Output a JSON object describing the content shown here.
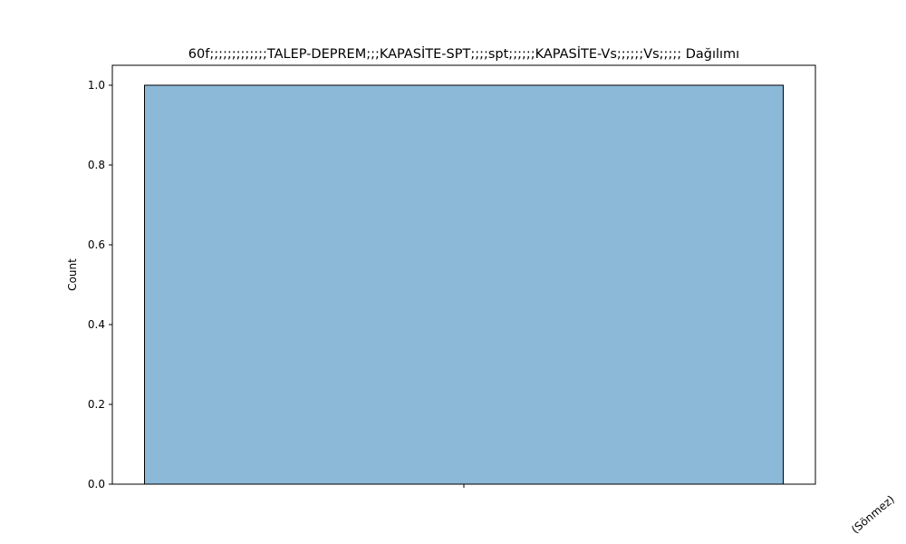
{
  "chart_data": {
    "type": "bar",
    "title": "60f;;;;;;;;;;;;;TALEP-DEPREM;;;KAPASİTE-SPT;;;;spt;;;;;;KAPASİTE-Vs;;;;;;Vs;;;;; Dağılımı",
    "xlabel": "",
    "ylabel": "Count",
    "categories": [
      "(Sönmez)"
    ],
    "values": [
      1
    ],
    "ylim": [
      0,
      1.05
    ],
    "yticks": [
      "0.0",
      "0.2",
      "0.4",
      "0.6",
      "0.8",
      "1.0"
    ],
    "grid": false,
    "bar_color": "#8db9d9",
    "edge_color": "#000000"
  }
}
